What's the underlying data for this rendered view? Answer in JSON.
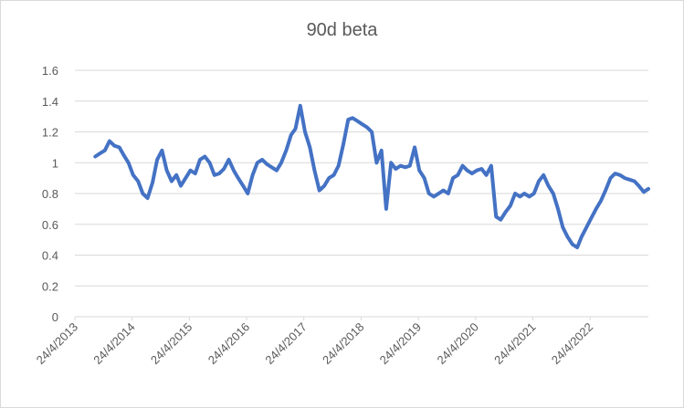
{
  "chart_data": {
    "type": "line",
    "title": "90d beta",
    "xlabel": "",
    "ylabel": "",
    "ylim": [
      0,
      1.6
    ],
    "y_ticks": [
      "0",
      "0.2",
      "0.4",
      "0.6",
      "0.8",
      "1",
      "1.2",
      "1.4",
      "1.6"
    ],
    "x_ticks": [
      "24/4/2013",
      "24/4/2014",
      "24/4/2015",
      "24/4/2016",
      "24/4/2017",
      "24/4/2018",
      "24/4/2019",
      "24/4/2020",
      "24/4/2021",
      "24/4/2022"
    ],
    "x_range": [
      "2013-04-24",
      "2023-05-01"
    ],
    "grid": "horizontal",
    "legend": "none",
    "line_color": "#4472C4",
    "series": [
      {
        "points": [
          [
            "2013-09-01",
            1.04
          ],
          [
            "2013-10-01",
            1.06
          ],
          [
            "2013-11-01",
            1.08
          ],
          [
            "2013-12-01",
            1.14
          ],
          [
            "2014-01-01",
            1.11
          ],
          [
            "2014-02-01",
            1.1
          ],
          [
            "2014-03-01",
            1.05
          ],
          [
            "2014-04-01",
            1.0
          ],
          [
            "2014-05-01",
            0.92
          ],
          [
            "2014-06-01",
            0.88
          ],
          [
            "2014-07-01",
            0.8
          ],
          [
            "2014-08-01",
            0.77
          ],
          [
            "2014-09-01",
            0.87
          ],
          [
            "2014-10-01",
            1.02
          ],
          [
            "2014-11-01",
            1.08
          ],
          [
            "2014-12-01",
            0.95
          ],
          [
            "2015-01-01",
            0.88
          ],
          [
            "2015-02-01",
            0.92
          ],
          [
            "2015-03-01",
            0.85
          ],
          [
            "2015-04-01",
            0.9
          ],
          [
            "2015-05-01",
            0.95
          ],
          [
            "2015-06-01",
            0.93
          ],
          [
            "2015-07-01",
            1.02
          ],
          [
            "2015-08-01",
            1.04
          ],
          [
            "2015-09-01",
            1.0
          ],
          [
            "2015-10-01",
            0.92
          ],
          [
            "2015-11-01",
            0.93
          ],
          [
            "2015-12-01",
            0.96
          ],
          [
            "2016-01-01",
            1.02
          ],
          [
            "2016-02-01",
            0.95
          ],
          [
            "2016-03-01",
            0.9
          ],
          [
            "2016-04-01",
            0.85
          ],
          [
            "2016-05-01",
            0.8
          ],
          [
            "2016-06-01",
            0.92
          ],
          [
            "2016-07-01",
            1.0
          ],
          [
            "2016-08-01",
            1.02
          ],
          [
            "2016-09-01",
            0.99
          ],
          [
            "2016-10-01",
            0.97
          ],
          [
            "2016-11-01",
            0.95
          ],
          [
            "2016-12-01",
            1.0
          ],
          [
            "2017-01-01",
            1.08
          ],
          [
            "2017-02-01",
            1.18
          ],
          [
            "2017-03-01",
            1.22
          ],
          [
            "2017-04-01",
            1.37
          ],
          [
            "2017-05-01",
            1.2
          ],
          [
            "2017-06-01",
            1.1
          ],
          [
            "2017-07-01",
            0.95
          ],
          [
            "2017-08-01",
            0.82
          ],
          [
            "2017-09-01",
            0.85
          ],
          [
            "2017-10-01",
            0.9
          ],
          [
            "2017-11-01",
            0.92
          ],
          [
            "2017-12-01",
            0.98
          ],
          [
            "2018-01-01",
            1.12
          ],
          [
            "2018-02-01",
            1.28
          ],
          [
            "2018-03-01",
            1.29
          ],
          [
            "2018-04-01",
            1.27
          ],
          [
            "2018-05-01",
            1.25
          ],
          [
            "2018-06-01",
            1.23
          ],
          [
            "2018-07-01",
            1.2
          ],
          [
            "2018-08-01",
            1.0
          ],
          [
            "2018-09-01",
            1.08
          ],
          [
            "2018-10-01",
            0.7
          ],
          [
            "2018-11-01",
            1.0
          ],
          [
            "2018-12-01",
            0.96
          ],
          [
            "2019-01-01",
            0.98
          ],
          [
            "2019-02-01",
            0.97
          ],
          [
            "2019-03-01",
            0.98
          ],
          [
            "2019-04-01",
            1.1
          ],
          [
            "2019-05-01",
            0.95
          ],
          [
            "2019-06-01",
            0.9
          ],
          [
            "2019-07-01",
            0.8
          ],
          [
            "2019-08-01",
            0.78
          ],
          [
            "2019-09-01",
            0.8
          ],
          [
            "2019-10-01",
            0.82
          ],
          [
            "2019-11-01",
            0.8
          ],
          [
            "2019-12-01",
            0.9
          ],
          [
            "2020-01-01",
            0.92
          ],
          [
            "2020-02-01",
            0.98
          ],
          [
            "2020-03-01",
            0.95
          ],
          [
            "2020-04-01",
            0.93
          ],
          [
            "2020-05-01",
            0.95
          ],
          [
            "2020-06-01",
            0.96
          ],
          [
            "2020-07-01",
            0.92
          ],
          [
            "2020-08-01",
            0.98
          ],
          [
            "2020-09-01",
            0.65
          ],
          [
            "2020-10-01",
            0.63
          ],
          [
            "2020-11-01",
            0.68
          ],
          [
            "2020-12-01",
            0.72
          ],
          [
            "2021-01-01",
            0.8
          ],
          [
            "2021-02-01",
            0.78
          ],
          [
            "2021-03-01",
            0.8
          ],
          [
            "2021-04-01",
            0.78
          ],
          [
            "2021-05-01",
            0.8
          ],
          [
            "2021-06-01",
            0.88
          ],
          [
            "2021-07-01",
            0.92
          ],
          [
            "2021-08-01",
            0.85
          ],
          [
            "2021-09-01",
            0.8
          ],
          [
            "2021-10-01",
            0.7
          ],
          [
            "2021-11-01",
            0.58
          ],
          [
            "2021-12-01",
            0.52
          ],
          [
            "2022-01-01",
            0.47
          ],
          [
            "2022-02-01",
            0.45
          ],
          [
            "2022-03-01",
            0.52
          ],
          [
            "2022-04-01",
            0.58
          ],
          [
            "2022-05-01",
            0.64
          ],
          [
            "2022-06-01",
            0.7
          ],
          [
            "2022-07-01",
            0.75
          ],
          [
            "2022-08-01",
            0.82
          ],
          [
            "2022-09-01",
            0.9
          ],
          [
            "2022-10-01",
            0.93
          ],
          [
            "2022-11-01",
            0.92
          ],
          [
            "2022-12-01",
            0.9
          ],
          [
            "2023-01-01",
            0.89
          ],
          [
            "2023-02-01",
            0.88
          ],
          [
            "2023-03-01",
            0.85
          ],
          [
            "2023-04-01",
            0.81
          ],
          [
            "2023-05-01",
            0.83
          ]
        ]
      }
    ]
  }
}
